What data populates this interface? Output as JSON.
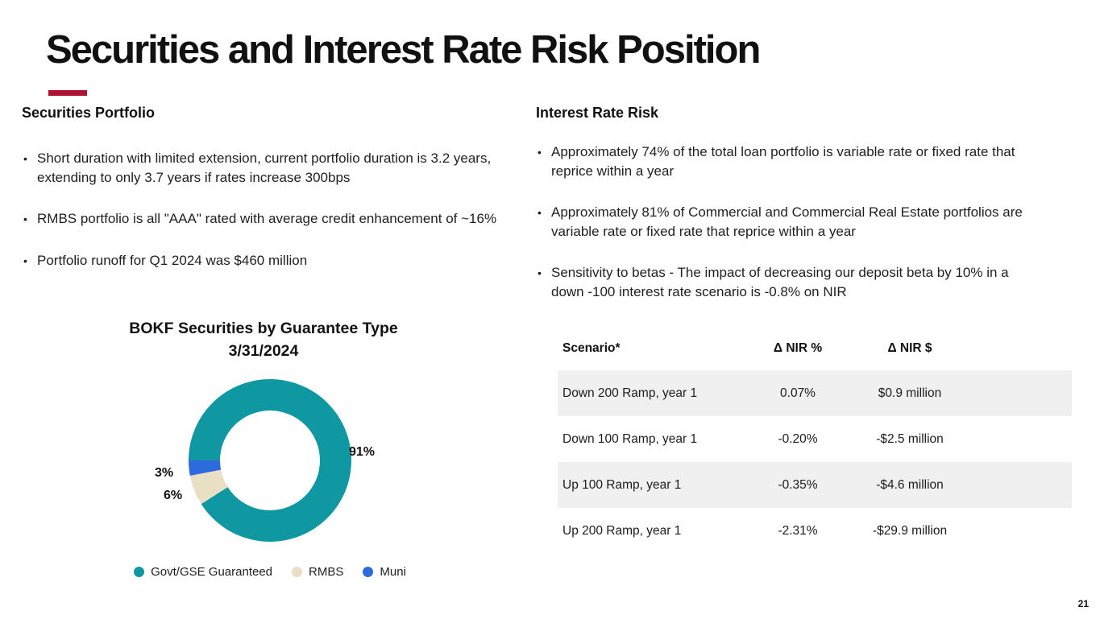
{
  "slide": {
    "title": "Securities and Interest Rate Risk Position",
    "page_number": "21",
    "accent_color": "#B01233"
  },
  "securities_portfolio": {
    "heading": "Securities Portfolio",
    "bullets": [
      "Short duration with limited extension, current portfolio duration is 3.2 years, extending to only 3.7 years if rates increase 300bps",
      "RMBS portfolio is all \"AAA\" rated with average credit enhancement of  ~16%",
      "Portfolio runoff for Q1 2024 was $460 million"
    ]
  },
  "interest_rate_risk": {
    "heading": "Interest Rate Risk",
    "bullets": [
      "Approximately 74% of the total loan portfolio is variable rate or fixed rate that reprice within a year",
      "Approximately 81% of Commercial and Commercial Real Estate portfolios are variable rate or fixed rate that reprice within a year",
      "Sensitivity to betas - The impact of decreasing our deposit beta by 10% in a down -100 interest rate scenario is -0.8% on NIR"
    ]
  },
  "chart_data": {
    "type": "pie",
    "subtype": "donut",
    "title": "BOKF Securities by Guarantee Type",
    "subtitle": "3/31/2024",
    "series": [
      {
        "name": "Govt/GSE Guaranteed",
        "value": 91,
        "label": "91%",
        "color": "#0F98A2"
      },
      {
        "name": "RMBS",
        "value": 6,
        "label": "6%",
        "color": "#E8DFC5"
      },
      {
        "name": "Muni",
        "value": 3,
        "label": "3%",
        "color": "#2D6BDD"
      }
    ],
    "start_angle_deg": 270,
    "direction": "clockwise",
    "hole_ratio": 0.61,
    "legend_position": "bottom"
  },
  "nir_table": {
    "headers": [
      "Scenario*",
      "Δ NIR %",
      "Δ NIR $"
    ],
    "rows": [
      {
        "scenario": "Down 200 Ramp, year 1",
        "nir_pct": "0.07%",
        "nir_usd": "$0.9 million"
      },
      {
        "scenario": "Down 100 Ramp, year 1",
        "nir_pct": "-0.20%",
        "nir_usd": "-$2.5 million"
      },
      {
        "scenario": "Up 100 Ramp, year 1",
        "nir_pct": "-0.35%",
        "nir_usd": "-$4.6 million"
      },
      {
        "scenario": "Up 200 Ramp, year 1",
        "nir_pct": "-2.31%",
        "nir_usd": "-$29.9 million"
      }
    ],
    "row_stripe_color": "#F0F0F0"
  }
}
